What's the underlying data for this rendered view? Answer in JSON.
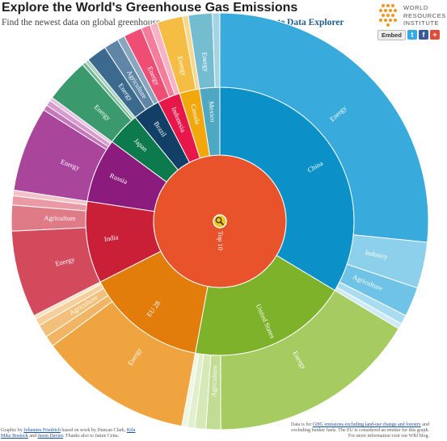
{
  "header": {
    "title": "Explore the World's Greenhouse Gas Emissions",
    "subtitle_prefix": "Find the newest data on global greenhouse gas emissions on",
    "subtitle_link": "CAIT Climate Data Explorer"
  },
  "logo": {
    "lines": [
      "WORLD",
      "RESOURCES",
      "INSTITUTE"
    ],
    "colors": [
      "#f7941d",
      "#fbb040",
      "#f7941d"
    ]
  },
  "share": {
    "embed_label": "Embed",
    "buttons": [
      {
        "label": "t",
        "icon": "twitter-icon",
        "color": "#33a9e6"
      },
      {
        "label": "f",
        "icon": "facebook-icon",
        "color": "#3b5998"
      },
      {
        "label": "+",
        "icon": "google-plus-icon",
        "color": "#dd4b39"
      }
    ]
  },
  "chart_data": {
    "type": "sunburst",
    "center": {
      "label": "Top 10",
      "icon": "magnifier-icon"
    },
    "nodes": [
      {
        "name": "China",
        "value": 23.5,
        "color": "#0b91c8",
        "children": [
          {
            "name": "Energy",
            "value": 18.6,
            "color": "#38aadb"
          },
          {
            "name": "Industry",
            "value": 2.5,
            "color": "#8dd0ec"
          },
          {
            "name": "Agriculture",
            "value": 1.6,
            "color": "#6ec3e7"
          },
          {
            "name": "",
            "value": 0.5,
            "color": "#aadcf1"
          },
          {
            "name": "",
            "value": 0.3,
            "color": "#cdebf6"
          }
        ]
      },
      {
        "name": "United States",
        "value": 13.5,
        "color": "#7fb22b",
        "children": [
          {
            "name": "Energy",
            "value": 11.4,
            "color": "#a6cb60"
          },
          {
            "name": "Agriculture",
            "value": 0.8,
            "color": "#c2dc93"
          },
          {
            "name": "Industry",
            "value": 0.6,
            "color": "#d6e8b5"
          },
          {
            "name": "",
            "value": 0.4,
            "color": "#e2efcc"
          },
          {
            "name": "",
            "value": 0.3,
            "color": "#eef6e2"
          }
        ]
      },
      {
        "name": "EU 28",
        "value": 10.2,
        "color": "#e27d0b",
        "children": [
          {
            "name": "Energy",
            "value": 8.3,
            "color": "#efa43f"
          },
          {
            "name": "",
            "value": 0.6,
            "color": "#f2b565"
          },
          {
            "name": "Agriculture",
            "value": 0.7,
            "color": "#f3c07b"
          },
          {
            "name": "",
            "value": 0.4,
            "color": "#f6d09c"
          },
          {
            "name": "",
            "value": 0.2,
            "color": "#f9e1be"
          }
        ]
      },
      {
        "name": "India",
        "value": 6.9,
        "color": "#c91f37",
        "children": [
          {
            "name": "Energy",
            "value": 4.7,
            "color": "#d34a5c"
          },
          {
            "name": "Agriculture",
            "value": 1.4,
            "color": "#df7a87"
          },
          {
            "name": "",
            "value": 0.5,
            "color": "#e99aa4"
          },
          {
            "name": "",
            "value": 0.3,
            "color": "#f2c2c8"
          }
        ]
      },
      {
        "name": "Russia",
        "value": 5.4,
        "color": "#8c1b7e",
        "children": [
          {
            "name": "Energy",
            "value": 4.6,
            "color": "#a9469c"
          },
          {
            "name": "",
            "value": 0.3,
            "color": "#c478ba"
          },
          {
            "name": "",
            "value": 0.3,
            "color": "#d59ccd"
          },
          {
            "name": "",
            "value": 0.2,
            "color": "#e6c1e1"
          }
        ]
      },
      {
        "name": "Japan",
        "value": 2.8,
        "color": "#0d7a4e",
        "children": [
          {
            "name": "Energy",
            "value": 2.4,
            "color": "#3a9a6e"
          },
          {
            "name": "",
            "value": 0.2,
            "color": "#74b896"
          },
          {
            "name": "",
            "value": 0.2,
            "color": "#a7d4bd"
          }
        ]
      },
      {
        "name": "Brazil",
        "value": 2.3,
        "color": "#123f66",
        "children": [
          {
            "name": "Energy",
            "value": 1.1,
            "color": "#3b6a8e"
          },
          {
            "name": "Agriculture",
            "value": 0.8,
            "color": "#5f86a6"
          },
          {
            "name": "",
            "value": 0.4,
            "color": "#89a6bf"
          }
        ]
      },
      {
        "name": "Indonesia",
        "value": 1.9,
        "color": "#e8174a",
        "children": [
          {
            "name": "Energy",
            "value": 1.0,
            "color": "#ef4e74"
          },
          {
            "name": "",
            "value": 0.5,
            "color": "#f37d9a"
          },
          {
            "name": "",
            "value": 0.4,
            "color": "#f8b2c3"
          }
        ]
      },
      {
        "name": "Canada",
        "value": 1.7,
        "color": "#f2a70d",
        "children": [
          {
            "name": "Energy",
            "value": 1.4,
            "color": "#f6bd45"
          },
          {
            "name": "",
            "value": 0.3,
            "color": "#f9d88d"
          }
        ]
      },
      {
        "name": "Mexico",
        "value": 1.7,
        "color": "#4fa8c2",
        "children": [
          {
            "name": "Energy",
            "value": 1.3,
            "color": "#74bdd1"
          },
          {
            "name": "",
            "value": 0.4,
            "color": "#a4d4e2"
          }
        ]
      }
    ]
  },
  "footer": {
    "credits_prefix": "Graphic by",
    "credits_author": "Johannes Friedrich",
    "credits_mid": "based on work by Duncan Clark,",
    "credits_kiln": "Kiln",
    "credits_line2a": "Mike Bostock",
    "credits_and": "and",
    "credits_jason": "Jason Davies",
    "credits_end": ". Thanks also to Jamie Cetta.",
    "note_line1_prefix": "Data is for",
    "note_line1_link": "GHG emissions excluding land-use change and forestry",
    "note_line1_suffix": "and",
    "note_line2": "excluding bunker fuels. The EU is considered an emitter for this graph.",
    "note_line3": "For more information visit our WRI blog."
  }
}
